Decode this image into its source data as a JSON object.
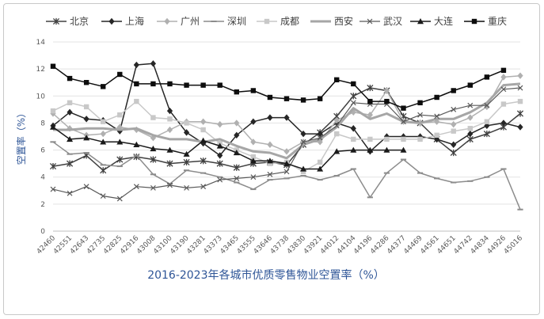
{
  "chart_data": {
    "type": "line",
    "title": "2016-2023年各城市优质零售物业空置率（%）",
    "ylabel": "空置率（%）",
    "xlabel": "",
    "ylim": [
      0,
      14
    ],
    "yticks": [
      0,
      2,
      4,
      6,
      8,
      10,
      12,
      14
    ],
    "grid": true,
    "legend_position": "top",
    "categories": [
      "42460",
      "42551",
      "42643",
      "42735",
      "42825",
      "42916",
      "43008",
      "43100",
      "43190",
      "43281",
      "43373",
      "43465",
      "43555",
      "43646",
      "43738",
      "43830",
      "43921",
      "44012",
      "44104",
      "44196",
      "44286",
      "44377",
      "44469",
      "44561",
      "44651",
      "44742",
      "44834",
      "44926",
      "45016"
    ],
    "series": [
      {
        "name": "北京",
        "color": "#404040",
        "marker": "asterisk",
        "width": 1.5,
        "values": [
          4.8,
          5.0,
          5.6,
          4.5,
          5.3,
          5.5,
          5.3,
          5.0,
          5.1,
          5.2,
          5.0,
          4.7,
          5.0,
          5.1,
          4.9,
          6.4,
          7.3,
          8.5,
          10.0,
          10.6,
          10.4,
          8.5,
          8.0,
          6.8,
          5.8,
          6.8,
          7.2,
          7.7,
          8.7
        ]
      },
      {
        "name": "上海",
        "color": "#262626",
        "marker": "diamond",
        "width": 1.5,
        "values": [
          7.8,
          8.8,
          8.3,
          8.2,
          7.4,
          12.3,
          12.4,
          8.9,
          7.3,
          6.5,
          5.6,
          7.1,
          8.1,
          8.4,
          8.4,
          7.2,
          7.2,
          8.0,
          7.6,
          5.9,
          7.0,
          7.0,
          7.0,
          6.8,
          6.4,
          7.2,
          7.8,
          8.0,
          7.7
        ]
      },
      {
        "name": "广州",
        "color": "#b0b0b0",
        "marker": "diamond",
        "width": 1.5,
        "values": [
          8.7,
          7.6,
          7.1,
          7.2,
          7.7,
          7.5,
          6.9,
          7.5,
          8.1,
          8.1,
          7.9,
          8.0,
          6.6,
          6.4,
          5.9,
          6.6,
          6.6,
          8.2,
          8.8,
          8.6,
          10.4,
          8.1,
          8.0,
          8.1,
          7.9,
          8.4,
          9.2,
          11.4,
          11.5
        ]
      },
      {
        "name": "深圳",
        "color": "#8c8c8c",
        "marker": "dash",
        "width": 1.5,
        "values": [
          6.6,
          5.7,
          5.8,
          4.9,
          4.8,
          5.6,
          4.2,
          3.5,
          4.5,
          4.3,
          4.0,
          3.6,
          3.1,
          3.8,
          3.9,
          4.1,
          3.8,
          4.1,
          4.6,
          2.5,
          4.3,
          5.3,
          4.3,
          3.9,
          3.6,
          3.7,
          4.0,
          4.6,
          1.6
        ]
      },
      {
        "name": "成都",
        "color": "#c8c8c8",
        "marker": "square",
        "width": 1.5,
        "values": [
          8.9,
          9.5,
          9.2,
          8.1,
          8.6,
          9.6,
          8.4,
          8.3,
          8.0,
          7.5,
          6.5,
          6.0,
          5.5,
          5.0,
          5.1,
          4.4,
          5.1,
          7.2,
          6.8,
          6.8,
          6.8,
          6.8,
          6.8,
          7.1,
          7.4,
          7.6,
          8.1,
          9.4,
          9.6
        ]
      },
      {
        "name": "西安",
        "color": "#a6a6a6",
        "marker": "none",
        "width": 3,
        "values": [
          7.5,
          7.5,
          7.6,
          7.6,
          7.5,
          7.6,
          7.1,
          6.8,
          6.8,
          6.6,
          6.8,
          6.3,
          5.9,
          5.8,
          5.4,
          6.4,
          6.8,
          7.7,
          9.1,
          8.3,
          8.7,
          8.1,
          8.0,
          8.3,
          8.3,
          8.8,
          9.5,
          10.8,
          10.9
        ]
      },
      {
        "name": "武汉",
        "color": "#595959",
        "marker": "x",
        "width": 1.2,
        "values": [
          3.1,
          2.8,
          3.3,
          2.6,
          2.4,
          3.3,
          3.2,
          3.4,
          3.2,
          3.3,
          3.8,
          3.9,
          4.0,
          4.2,
          4.4,
          6.6,
          6.9,
          7.8,
          9.5,
          9.4,
          9.4,
          8.1,
          8.6,
          8.5,
          9.0,
          9.3,
          9.3,
          10.5,
          10.6
        ]
      },
      {
        "name": "大连",
        "color": "#1a1a1a",
        "marker": "triangle",
        "width": 1.5,
        "values": [
          7.7,
          6.8,
          6.9,
          6.6,
          6.6,
          6.4,
          6.1,
          6.0,
          5.7,
          6.7,
          6.3,
          5.8,
          5.2,
          5.2,
          5.0,
          4.6,
          4.6,
          5.9,
          6.0,
          6.0,
          6.0,
          6.0,
          null,
          null,
          null,
          null,
          null,
          null,
          null
        ]
      },
      {
        "name": "重庆",
        "color": "#0d0d0d",
        "marker": "square",
        "width": 1.5,
        "values": [
          12.2,
          11.3,
          11.0,
          10.7,
          11.6,
          10.9,
          10.9,
          10.9,
          10.8,
          10.8,
          10.8,
          10.3,
          10.4,
          9.9,
          9.8,
          9.7,
          9.8,
          11.2,
          10.9,
          9.6,
          9.6,
          9.1,
          9.5,
          9.9,
          10.4,
          10.8,
          11.4,
          11.9,
          null
        ]
      }
    ]
  }
}
